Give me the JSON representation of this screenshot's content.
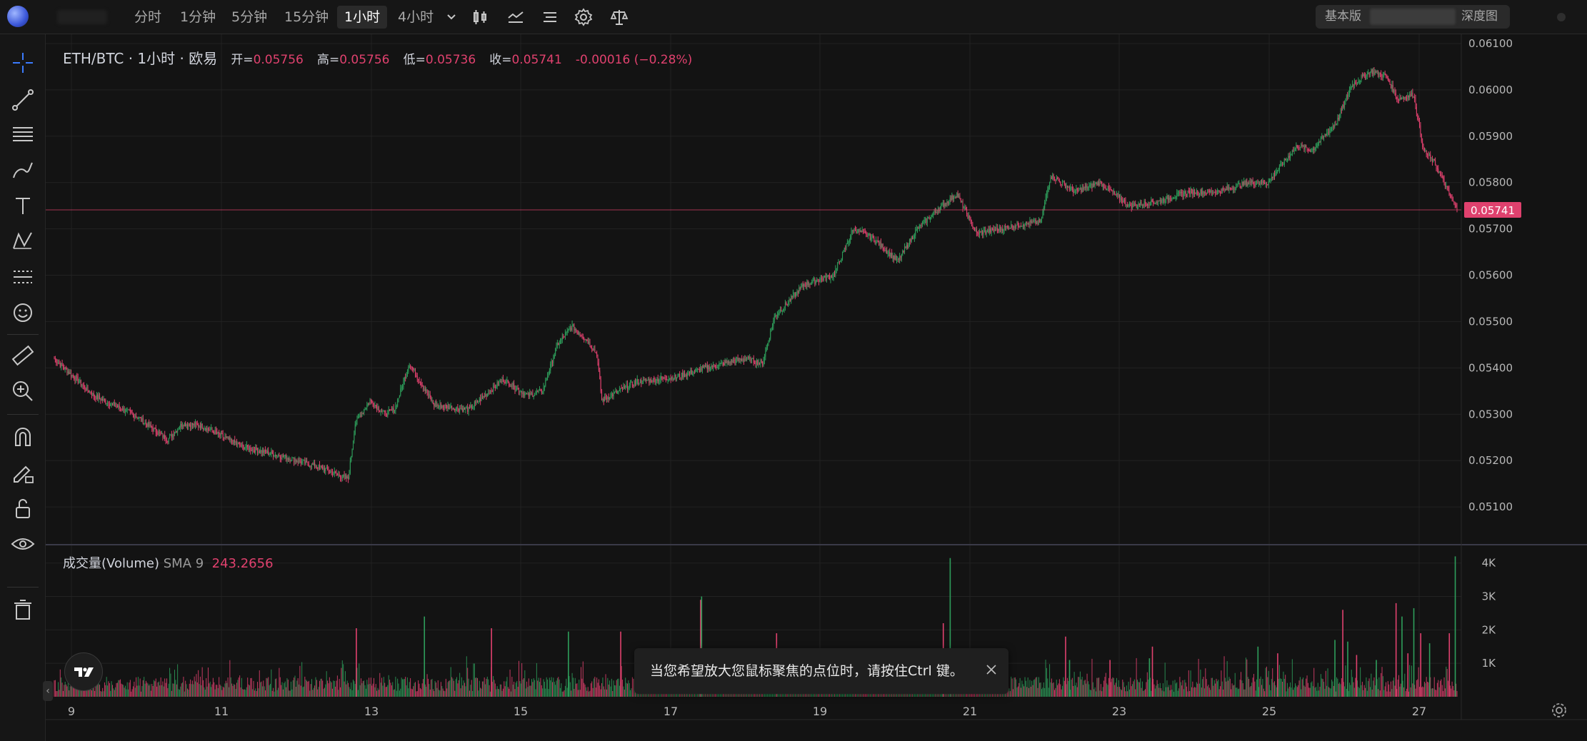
{
  "toolbar": {
    "timeframes": [
      "分时",
      "1分钟",
      "5分钟",
      "15分钟",
      "1小时",
      "4小时"
    ],
    "active_timeframe": "1小时",
    "view_basic": "基本版",
    "view_depth": "深度图"
  },
  "legend": {
    "symbol": "ETH/BTC · 1小时 · 欧易",
    "open_label": "开=",
    "open": "0.05756",
    "high_label": "高=",
    "high": "0.05756",
    "low_label": "低=",
    "low": "0.05736",
    "close_label": "收=",
    "close": "0.05741",
    "change": "-0.00016 (−0.28%)"
  },
  "volume_legend": {
    "title": "成交量(Volume)",
    "sma_label": "SMA 9",
    "sma_value": "243.2656"
  },
  "toast": {
    "message": "当您希望放大您鼠标聚焦的点位时，请按住Ctrl 键。"
  },
  "colors": {
    "up": "#2e9e5b",
    "down": "#e0416e",
    "background": "#131313",
    "grid": "#222222"
  },
  "icons": [
    "crosshair-icon",
    "trendline-icon",
    "fib-icon",
    "brush-icon",
    "text-icon",
    "pattern-icon",
    "forecast-icon",
    "emoji-icon",
    "ruler-icon",
    "zoom-in-icon",
    "magnet-icon",
    "lock-draw-icon",
    "unlock-icon",
    "eye-icon",
    "trash-icon",
    "candles-icon",
    "indicators-icon",
    "settings-icon",
    "compare-icon"
  ],
  "chart_data": {
    "type": "candlestick",
    "symbol": "ETH/BTC",
    "interval": "1小时",
    "x_ticks": [
      "9",
      "11",
      "13",
      "15",
      "17",
      "19",
      "21",
      "23",
      "25",
      "27"
    ],
    "price_ticks": [
      "0.06100",
      "0.06000",
      "0.05900",
      "0.05800",
      "0.05700",
      "0.05600",
      "0.05500",
      "0.05400",
      "0.05300",
      "0.05200",
      "0.05100"
    ],
    "price_range": [
      0.0502,
      0.0612
    ],
    "last_price": "0.05741",
    "volume_ticks": [
      "4K",
      "3K",
      "2K",
      "1K"
    ],
    "volume_range": [
      0,
      4400
    ],
    "series_close_keypoints": [
      [
        0,
        0.0542
      ],
      [
        40,
        0.0534
      ],
      [
        80,
        0.053
      ],
      [
        115,
        0.05245
      ],
      [
        130,
        0.0528
      ],
      [
        150,
        0.05275
      ],
      [
        190,
        0.0523
      ],
      [
        230,
        0.0521
      ],
      [
        270,
        0.05185
      ],
      [
        298,
        0.0516
      ],
      [
        305,
        0.0528
      ],
      [
        320,
        0.0533
      ],
      [
        335,
        0.053
      ],
      [
        345,
        0.0531
      ],
      [
        360,
        0.0541
      ],
      [
        385,
        0.0532
      ],
      [
        420,
        0.0531
      ],
      [
        455,
        0.05375
      ],
      [
        480,
        0.0534
      ],
      [
        495,
        0.0535
      ],
      [
        510,
        0.0545
      ],
      [
        525,
        0.0549
      ],
      [
        540,
        0.0546
      ],
      [
        550,
        0.0543
      ],
      [
        555,
        0.0533
      ],
      [
        590,
        0.0537
      ],
      [
        630,
        0.0538
      ],
      [
        660,
        0.054
      ],
      [
        700,
        0.0542
      ],
      [
        718,
        0.0541
      ],
      [
        730,
        0.0551
      ],
      [
        760,
        0.0558
      ],
      [
        790,
        0.056
      ],
      [
        810,
        0.057
      ],
      [
        830,
        0.0568
      ],
      [
        855,
        0.0563
      ],
      [
        875,
        0.057
      ],
      [
        900,
        0.0575
      ],
      [
        915,
        0.05775
      ],
      [
        935,
        0.0569
      ],
      [
        980,
        0.0571
      ],
      [
        1000,
        0.05715
      ],
      [
        1010,
        0.05815
      ],
      [
        1035,
        0.0578
      ],
      [
        1060,
        0.058
      ],
      [
        1090,
        0.0575
      ],
      [
        1120,
        0.0576
      ],
      [
        1150,
        0.0578
      ],
      [
        1180,
        0.0578
      ],
      [
        1210,
        0.058
      ],
      [
        1230,
        0.058
      ],
      [
        1260,
        0.0588
      ],
      [
        1275,
        0.0587
      ],
      [
        1300,
        0.0593
      ],
      [
        1315,
        0.0601
      ],
      [
        1335,
        0.0604
      ],
      [
        1350,
        0.0603
      ],
      [
        1362,
        0.0598
      ],
      [
        1378,
        0.0599
      ],
      [
        1388,
        0.0587
      ],
      [
        1400,
        0.0584
      ],
      [
        1422,
        0.0574
      ]
    ],
    "volume_spikes": [
      [
        306,
        2050
      ],
      [
        375,
        2400
      ],
      [
        443,
        2050
      ],
      [
        521,
        1950
      ],
      [
        574,
        1950
      ],
      [
        654,
        1050
      ],
      [
        655,
        2900
      ],
      [
        656,
        3000
      ],
      [
        732,
        1900
      ],
      [
        900,
        1300
      ],
      [
        901,
        2200
      ],
      [
        908,
        4150
      ],
      [
        1025,
        1800
      ],
      [
        1029,
        1100
      ],
      [
        1070,
        1100
      ],
      [
        1110,
        1150
      ],
      [
        1113,
        1500
      ],
      [
        1220,
        1500
      ],
      [
        1240,
        1300
      ],
      [
        1298,
        1700
      ],
      [
        1306,
        2600
      ],
      [
        1311,
        1650
      ],
      [
        1320,
        1250
      ],
      [
        1340,
        1100
      ],
      [
        1360,
        2800
      ],
      [
        1366,
        2400
      ],
      [
        1372,
        1300
      ],
      [
        1378,
        2650
      ],
      [
        1385,
        1900
      ],
      [
        1394,
        1600
      ],
      [
        1414,
        1900
      ],
      [
        1420,
        4200
      ]
    ]
  }
}
